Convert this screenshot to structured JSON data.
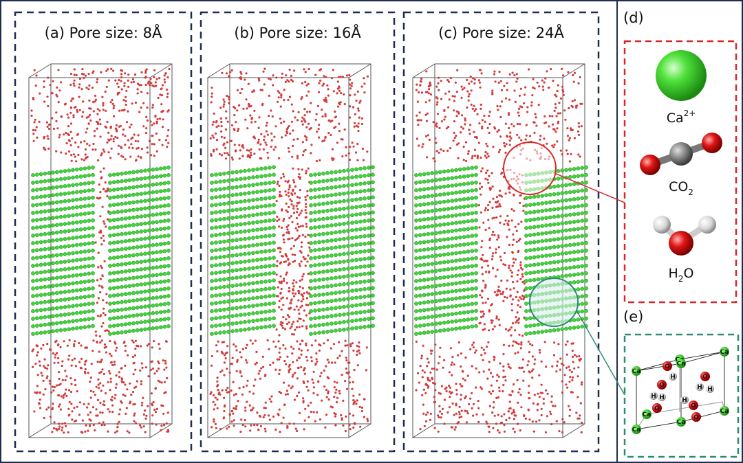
{
  "panels": [
    {
      "label": "(a) Pore size: 8Å"
    },
    {
      "label": "(b) Pore size: 16Å"
    },
    {
      "label": "(c) Pore size: 24Å"
    }
  ],
  "legend": {
    "label": "(d)",
    "species": [
      {
        "name": "Ca",
        "sup": "2+"
      },
      {
        "name": "CO",
        "sub": "2"
      },
      {
        "name": "H",
        "sub": "2",
        "tail": "O"
      }
    ]
  },
  "cell": {
    "label": "(e)",
    "atoms": [
      "Ca",
      "Ca",
      "Ca",
      "Ca",
      "Ca",
      "Ca",
      "Ca",
      "Ca",
      "O",
      "O",
      "O",
      "O",
      "O",
      "O",
      "H",
      "H",
      "H",
      "H",
      "H",
      "H"
    ]
  }
}
